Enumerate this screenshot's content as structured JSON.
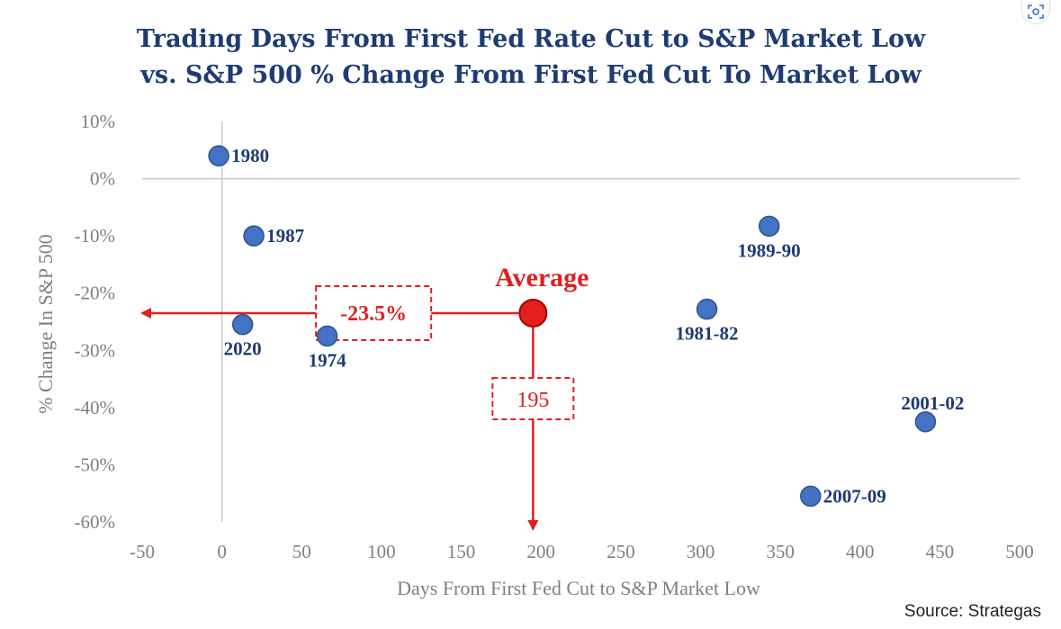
{
  "chart_data": {
    "type": "scatter",
    "title_lines": [
      "Trading Days From First Fed Rate Cut to S&P Market Low",
      "vs. S&P 500 % Change From First Fed Cut To Market Low"
    ],
    "xlabel": "Days From First Fed Cut to S&P Market Low",
    "ylabel": "% Change In S&P 500",
    "xlim": [
      -50,
      500
    ],
    "ylim": [
      -60,
      10
    ],
    "x_ticks": [
      -50,
      0,
      50,
      100,
      150,
      200,
      250,
      300,
      350,
      400,
      450,
      500
    ],
    "x_tick_labels": [
      "-50",
      "0",
      "50",
      "100",
      "150",
      "200",
      "250",
      "300",
      "350",
      "400",
      "450",
      "500"
    ],
    "y_ticks": [
      10,
      0,
      -10,
      -20,
      -30,
      -40,
      -50,
      -60
    ],
    "y_tick_labels": [
      "10%",
      "0%",
      "-10%",
      "-20%",
      "-30%",
      "-40%",
      "-50%",
      "-60%"
    ],
    "grid": false,
    "zero_lines": true,
    "points": [
      {
        "label": "1980",
        "x": -2,
        "y": 4,
        "label_pos": "right"
      },
      {
        "label": "1987",
        "x": 20,
        "y": -10,
        "label_pos": "right"
      },
      {
        "label": "2020",
        "x": 13,
        "y": -25.5,
        "label_pos": "below"
      },
      {
        "label": "1974",
        "x": 66,
        "y": -27.5,
        "label_pos": "below"
      },
      {
        "label": "1989-90",
        "x": 343,
        "y": -8.3,
        "label_pos": "below"
      },
      {
        "label": "1981-82",
        "x": 304,
        "y": -22.8,
        "label_pos": "below"
      },
      {
        "label": "2001-02",
        "x": 441,
        "y": -42.5,
        "label_pos": "above"
      },
      {
        "label": "2007-09",
        "x": 369,
        "y": -55.5,
        "label_pos": "right"
      }
    ],
    "average": {
      "label": "Average",
      "x": 195,
      "y": -23.5,
      "y_callout": "-23.5%",
      "x_callout": "195"
    },
    "colors": {
      "point": "#4472c4",
      "point_stroke": "#2f528f",
      "average": "#e41f1f",
      "text": "#1f3b73",
      "axis_text": "#808080"
    }
  },
  "source": "Source: Strategas"
}
